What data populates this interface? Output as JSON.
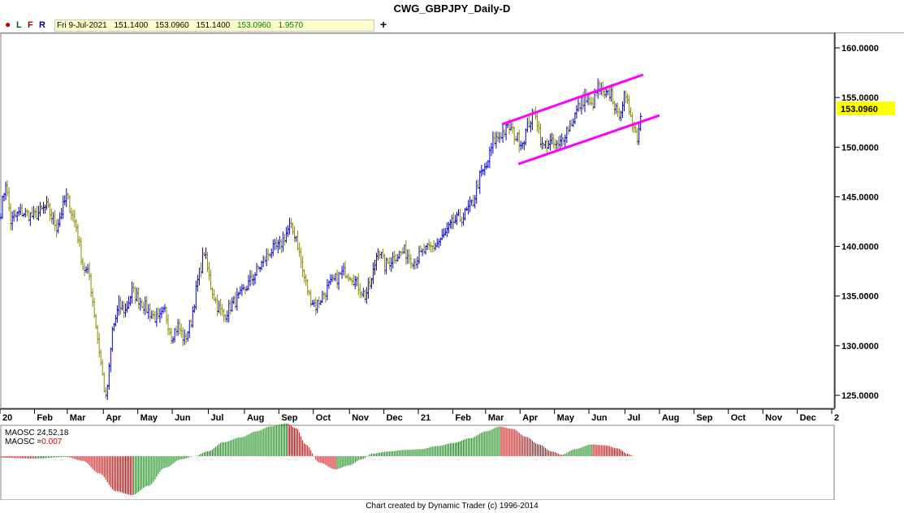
{
  "window": {
    "title": "CWG_GBPJPY_Daily-D"
  },
  "toolbar": {
    "buttons": [
      {
        "label": "L",
        "color": "#006400"
      },
      {
        "label": "F",
        "color": "#8b0000"
      },
      {
        "label": "R",
        "color": "#00008b"
      }
    ],
    "dot_color": "#cc0000",
    "quote": {
      "date": "Fri 9-Jul-2021",
      "open": "151.1400",
      "high": "153.0960",
      "low": "151.1400",
      "close": "153.0960",
      "change": "1.9570"
    },
    "plus_label": "+"
  },
  "price_label": {
    "value": "153.0960",
    "color": "#ffff00"
  },
  "indicator": {
    "name": "MAOSC 24,52,18",
    "value_label": "MAOSC =",
    "value": "0.007"
  },
  "footer": {
    "text": "Chart created by Dynamic Trader  (c) 1996-2014"
  },
  "colors": {
    "up_bar": "#0000cc",
    "down_bar": "#8b8b00",
    "channel": "#ff00ff",
    "osc_pos": "#008000",
    "osc_neg": "#cc0000"
  },
  "chart_data": {
    "type": "ohlc",
    "title": "CWG_GBPJPY_Daily-D",
    "ylim": [
      123.5,
      161.5
    ],
    "y_ticks": [
      "160.0000",
      "155.0000",
      "150.0000",
      "145.0000",
      "140.0000",
      "135.0000",
      "130.0000",
      "125.0000"
    ],
    "y_tick_values": [
      160,
      155,
      150,
      145,
      140,
      135,
      130,
      125
    ],
    "x_tick_labels": [
      "20",
      "Feb",
      "Mar",
      "Apr",
      "May",
      "Jun",
      "Jul",
      "Aug",
      "Sep",
      "Oct",
      "Nov",
      "Dec",
      "21",
      "Feb",
      "Mar",
      "Apr",
      "May",
      "Jun",
      "Jul",
      "Aug",
      "Sep",
      "Oct",
      "Nov",
      "Dec",
      "2"
    ],
    "x_tick_index": [
      0,
      21,
      41,
      63,
      84,
      105,
      127,
      149,
      170,
      191,
      213,
      234,
      255,
      276,
      296,
      317,
      338,
      359,
      381,
      402,
      423,
      444,
      465,
      486,
      507
    ],
    "series_close_points": [
      [
        0,
        143.5
      ],
      [
        3,
        146.5
      ],
      [
        6,
        142.5
      ],
      [
        12,
        143.5
      ],
      [
        20,
        143.0
      ],
      [
        28,
        144.0
      ],
      [
        34,
        142.0
      ],
      [
        40,
        145.0
      ],
      [
        46,
        142.0
      ],
      [
        50,
        138.0
      ],
      [
        54,
        137.0
      ],
      [
        58,
        132.0
      ],
      [
        62,
        127.0
      ],
      [
        64,
        124.5
      ],
      [
        66,
        127.5
      ],
      [
        68,
        131.5
      ],
      [
        72,
        134.0
      ],
      [
        76,
        133.5
      ],
      [
        80,
        135.5
      ],
      [
        85,
        134.5
      ],
      [
        90,
        133.5
      ],
      [
        96,
        132.5
      ],
      [
        100,
        133.5
      ],
      [
        104,
        131.0
      ],
      [
        108,
        132.0
      ],
      [
        112,
        130.5
      ],
      [
        116,
        132.5
      ],
      [
        120,
        136.5
      ],
      [
        124,
        139.5
      ],
      [
        128,
        136.0
      ],
      [
        132,
        134.0
      ],
      [
        136,
        133.0
      ],
      [
        140,
        134.0
      ],
      [
        146,
        135.0
      ],
      [
        152,
        136.5
      ],
      [
        158,
        138.0
      ],
      [
        164,
        139.5
      ],
      [
        170,
        140.0
      ],
      [
        176,
        142.0
      ],
      [
        180,
        141.0
      ],
      [
        184,
        137.5
      ],
      [
        188,
        135.0
      ],
      [
        192,
        134.0
      ],
      [
        196,
        135.0
      ],
      [
        200,
        136.0
      ],
      [
        206,
        137.0
      ],
      [
        210,
        137.5
      ],
      [
        214,
        137.0
      ],
      [
        218,
        136.0
      ],
      [
        222,
        135.0
      ],
      [
        226,
        136.5
      ],
      [
        230,
        140.0
      ],
      [
        234,
        138.0
      ],
      [
        240,
        139.0
      ],
      [
        246,
        139.5
      ],
      [
        252,
        138.5
      ],
      [
        258,
        139.5
      ],
      [
        264,
        140.0
      ],
      [
        270,
        141.0
      ],
      [
        276,
        142.5
      ],
      [
        282,
        143.0
      ],
      [
        288,
        144.5
      ],
      [
        292,
        147.0
      ],
      [
        296,
        148.0
      ],
      [
        300,
        150.5
      ],
      [
        306,
        151.5
      ],
      [
        310,
        152.0
      ],
      [
        314,
        151.0
      ],
      [
        318,
        150.5
      ],
      [
        322,
        152.5
      ],
      [
        326,
        153.5
      ],
      [
        330,
        150.0
      ],
      [
        334,
        150.5
      ],
      [
        340,
        150.0
      ],
      [
        344,
        151.5
      ],
      [
        348,
        152.5
      ],
      [
        352,
        154.0
      ],
      [
        356,
        155.0
      ],
      [
        360,
        154.0
      ],
      [
        364,
        156.0
      ],
      [
        368,
        155.0
      ],
      [
        372,
        155.5
      ],
      [
        376,
        153.0
      ],
      [
        380,
        155.0
      ],
      [
        384,
        153.5
      ],
      [
        386,
        152.0
      ],
      [
        388,
        151.0
      ],
      [
        390,
        153.1
      ]
    ],
    "channel_lines": [
      {
        "x1": 306,
        "y1": 152.3,
        "x2": 392,
        "y2": 157.3
      },
      {
        "x1": 316,
        "y1": 148.3,
        "x2": 402,
        "y2": 153.2
      }
    ],
    "indicator_series": [
      [
        0,
        -0.2
      ],
      [
        20,
        -0.3
      ],
      [
        40,
        -0.1
      ],
      [
        50,
        -0.6
      ],
      [
        60,
        -2.2
      ],
      [
        70,
        -4.5
      ],
      [
        80,
        -5.0
      ],
      [
        90,
        -3.8
      ],
      [
        100,
        -1.5
      ],
      [
        110,
        -0.4
      ],
      [
        118,
        0.0
      ],
      [
        126,
        0.6
      ],
      [
        136,
        1.8
      ],
      [
        146,
        2.4
      ],
      [
        156,
        3.2
      ],
      [
        164,
        3.8
      ],
      [
        174,
        4.2
      ],
      [
        180,
        3.6
      ],
      [
        186,
        1.5
      ],
      [
        194,
        -0.8
      ],
      [
        204,
        -1.7
      ],
      [
        212,
        -1.2
      ],
      [
        220,
        -0.4
      ],
      [
        226,
        0.3
      ],
      [
        236,
        0.6
      ],
      [
        246,
        0.8
      ],
      [
        256,
        0.9
      ],
      [
        266,
        1.3
      ],
      [
        276,
        1.7
      ],
      [
        286,
        2.3
      ],
      [
        296,
        3.2
      ],
      [
        304,
        3.8
      ],
      [
        312,
        3.5
      ],
      [
        320,
        2.5
      ],
      [
        328,
        1.5
      ],
      [
        336,
        0.6
      ],
      [
        342,
        0.2
      ],
      [
        350,
        0.9
      ],
      [
        360,
        1.5
      ],
      [
        368,
        1.4
      ],
      [
        376,
        1.0
      ],
      [
        382,
        0.3
      ],
      [
        386,
        0.0
      ]
    ],
    "indicator_ylim": [
      -5.5,
      4.5
    ]
  }
}
